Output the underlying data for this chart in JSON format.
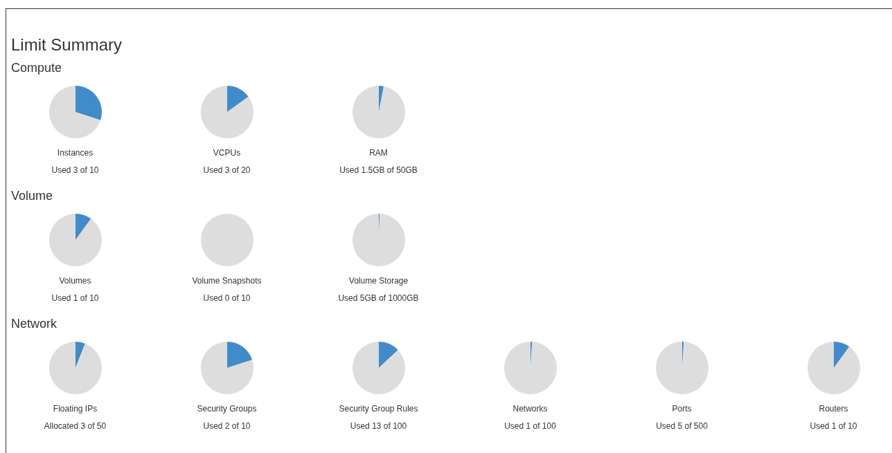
{
  "chart_data": [
    {
      "type": "other",
      "title": "Limit Summary",
      "subtitle": "Compute"
    },
    {
      "type": "pie",
      "title": "Instances",
      "annotations": [
        "Used 3 of 10"
      ],
      "categories": [
        null,
        null
      ],
      "values": [
        30,
        70
      ],
      "colors": [
        "#428bca",
        "#dddddd"
      ]
    },
    {
      "type": "pie",
      "title": "VCPUs",
      "annotations": [
        "Used 3 of 20"
      ],
      "categories": [
        null,
        null
      ],
      "values": [
        15,
        85
      ],
      "colors": [
        "#428bca",
        "#dddddd"
      ]
    },
    {
      "type": "pie",
      "title": "RAM",
      "annotations": [
        "Used 1.5GB of 50GB"
      ],
      "categories": [
        null,
        null
      ],
      "values": [
        3,
        97
      ],
      "colors": [
        "#428bca",
        "#dddddd"
      ]
    },
    {
      "type": "other",
      "title": "Volume"
    },
    {
      "type": "pie",
      "title": "Volumes",
      "annotations": [
        "Used 1 of 10"
      ],
      "categories": [
        null,
        null
      ],
      "values": [
        10,
        90
      ],
      "colors": [
        "#428bca",
        "#dddddd"
      ]
    },
    {
      "type": "pie",
      "title": "Volume Snapshots",
      "annotations": [
        "Used 0 of 10"
      ],
      "categories": [
        null,
        null
      ],
      "values": [
        0,
        100
      ],
      "colors": [
        "#428bca",
        "#dddddd"
      ]
    },
    {
      "type": "pie",
      "title": "Volume Storage",
      "annotations": [
        "Used 5GB of 1000GB"
      ],
      "categories": [
        null,
        null
      ],
      "values": [
        0.5,
        99.5
      ],
      "colors": [
        "#428bca",
        "#dddddd"
      ]
    },
    {
      "type": "other",
      "title": "Network"
    },
    {
      "type": "pie",
      "title": "Floating IPs",
      "annotations": [
        "Allocated 3 of 50"
      ],
      "categories": [
        null,
        null
      ],
      "values": [
        6,
        94
      ],
      "colors": [
        "#428bca",
        "#dddddd"
      ]
    },
    {
      "type": "pie",
      "title": "Security Groups",
      "annotations": [
        "Used 2 of 10"
      ],
      "categories": [
        null,
        null
      ],
      "values": [
        20,
        80
      ],
      "colors": [
        "#428bca",
        "#dddddd"
      ]
    },
    {
      "type": "pie",
      "title": "Security Group Rules",
      "annotations": [
        "Used 13 of 100"
      ],
      "categories": [
        null,
        null
      ],
      "values": [
        13,
        87
      ],
      "colors": [
        "#428bca",
        "#dddddd"
      ]
    },
    {
      "type": "pie",
      "title": "Networks",
      "annotations": [
        "Used 1 of 100"
      ],
      "categories": [
        null,
        null
      ],
      "values": [
        1,
        99
      ],
      "colors": [
        "#428bca",
        "#dddddd"
      ]
    },
    {
      "type": "pie",
      "title": "Ports",
      "annotations": [
        "Used 5 of 500"
      ],
      "categories": [
        null,
        null
      ],
      "values": [
        1,
        99
      ],
      "colors": [
        "#428bca",
        "#dddddd"
      ]
    },
    {
      "type": "pie",
      "title": "Routers",
      "annotations": [
        "Used 1 of 10"
      ],
      "categories": [
        null,
        null
      ],
      "values": [
        10,
        90
      ],
      "colors": [
        "#428bca",
        "#dddddd"
      ]
    }
  ]
}
